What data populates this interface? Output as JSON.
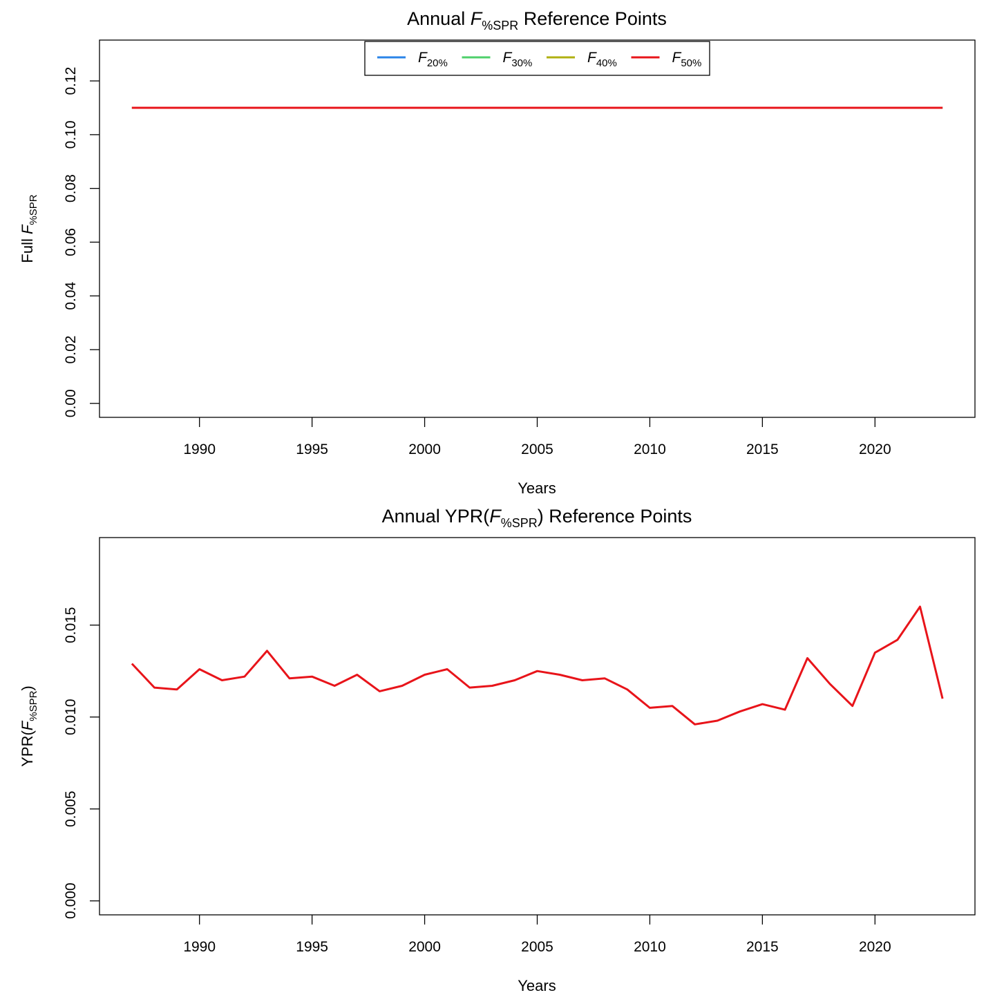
{
  "chart_data": [
    {
      "type": "line",
      "title": {
        "pre": "Annual ",
        "F": "F",
        "sub": "%SPR",
        "post": " Reference Points"
      },
      "xlabel": "Years",
      "ylabel": {
        "pre": "Full ",
        "F": "F",
        "sub": "%SPR",
        "post": ""
      },
      "xlim": [
        1987,
        2023
      ],
      "ylim": [
        0,
        0.13
      ],
      "xticks": [
        1990,
        1995,
        2000,
        2005,
        2010,
        2015,
        2020
      ],
      "yticks": [
        "0.00",
        "0.02",
        "0.04",
        "0.06",
        "0.08",
        "0.10",
        "0.12"
      ],
      "legend_position": "top",
      "x": [
        1987,
        1988,
        1989,
        1990,
        1991,
        1992,
        1993,
        1994,
        1995,
        1996,
        1997,
        1998,
        1999,
        2000,
        2001,
        2002,
        2003,
        2004,
        2005,
        2006,
        2007,
        2008,
        2009,
        2010,
        2011,
        2012,
        2013,
        2014,
        2015,
        2016,
        2017,
        2018,
        2019,
        2020,
        2021,
        2022,
        2023
      ],
      "series": [
        {
          "name": "F",
          "sub": "20%",
          "color": "#2a84e8",
          "values": [
            0.11,
            0.11,
            0.11,
            0.11,
            0.11,
            0.11,
            0.11,
            0.11,
            0.11,
            0.11,
            0.11,
            0.11,
            0.11,
            0.11,
            0.11,
            0.11,
            0.11,
            0.11,
            0.11,
            0.11,
            0.11,
            0.11,
            0.11,
            0.11,
            0.11,
            0.11,
            0.11,
            0.11,
            0.11,
            0.11,
            0.11,
            0.11,
            0.11,
            0.11,
            0.11,
            0.11,
            0.11
          ]
        },
        {
          "name": "F",
          "sub": "30%",
          "color": "#4ed06a",
          "values": [
            0.11,
            0.11,
            0.11,
            0.11,
            0.11,
            0.11,
            0.11,
            0.11,
            0.11,
            0.11,
            0.11,
            0.11,
            0.11,
            0.11,
            0.11,
            0.11,
            0.11,
            0.11,
            0.11,
            0.11,
            0.11,
            0.11,
            0.11,
            0.11,
            0.11,
            0.11,
            0.11,
            0.11,
            0.11,
            0.11,
            0.11,
            0.11,
            0.11,
            0.11,
            0.11,
            0.11,
            0.11
          ]
        },
        {
          "name": "F",
          "sub": "40%",
          "color": "#b0b010",
          "values": [
            0.11,
            0.11,
            0.11,
            0.11,
            0.11,
            0.11,
            0.11,
            0.11,
            0.11,
            0.11,
            0.11,
            0.11,
            0.11,
            0.11,
            0.11,
            0.11,
            0.11,
            0.11,
            0.11,
            0.11,
            0.11,
            0.11,
            0.11,
            0.11,
            0.11,
            0.11,
            0.11,
            0.11,
            0.11,
            0.11,
            0.11,
            0.11,
            0.11,
            0.11,
            0.11,
            0.11,
            0.11
          ]
        },
        {
          "name": "F",
          "sub": "50%",
          "color": "#e8141a",
          "values": [
            0.11,
            0.11,
            0.11,
            0.11,
            0.11,
            0.11,
            0.11,
            0.11,
            0.11,
            0.11,
            0.11,
            0.11,
            0.11,
            0.11,
            0.11,
            0.11,
            0.11,
            0.11,
            0.11,
            0.11,
            0.11,
            0.11,
            0.11,
            0.11,
            0.11,
            0.11,
            0.11,
            0.11,
            0.11,
            0.11,
            0.11,
            0.11,
            0.11,
            0.11,
            0.11,
            0.11,
            0.11
          ]
        }
      ]
    },
    {
      "type": "line",
      "title": {
        "pre": "Annual YPR(",
        "F": "F",
        "sub": "%SPR",
        "post": ") Reference Points"
      },
      "xlabel": "Years",
      "ylabel": {
        "pre": "YPR(",
        "F": "F",
        "sub": "%SPR",
        "post": ")"
      },
      "xlim": [
        1987,
        2023
      ],
      "ylim": [
        0,
        0.019
      ],
      "xticks": [
        1990,
        1995,
        2000,
        2005,
        2010,
        2015,
        2020
      ],
      "yticks": [
        "0.000",
        "0.005",
        "0.010",
        "0.015"
      ],
      "x": [
        1987,
        1988,
        1989,
        1990,
        1991,
        1992,
        1993,
        1994,
        1995,
        1996,
        1997,
        1998,
        1999,
        2000,
        2001,
        2002,
        2003,
        2004,
        2005,
        2006,
        2007,
        2008,
        2009,
        2010,
        2011,
        2012,
        2013,
        2014,
        2015,
        2016,
        2017,
        2018,
        2019,
        2020,
        2021,
        2022,
        2023
      ],
      "series": [
        {
          "color": "#e8141a",
          "values": [
            0.0129,
            0.0116,
            0.0115,
            0.0126,
            0.012,
            0.0122,
            0.0136,
            0.0121,
            0.0122,
            0.0117,
            0.0123,
            0.0114,
            0.0117,
            0.0123,
            0.0126,
            0.0116,
            0.0117,
            0.012,
            0.0125,
            0.0123,
            0.012,
            0.0121,
            0.0115,
            0.0105,
            0.0106,
            0.0096,
            0.0098,
            0.0103,
            0.0107,
            0.0104,
            0.0132,
            0.0118,
            0.0106,
            0.0135,
            0.0142,
            0.016,
            0.011
          ]
        }
      ]
    }
  ]
}
